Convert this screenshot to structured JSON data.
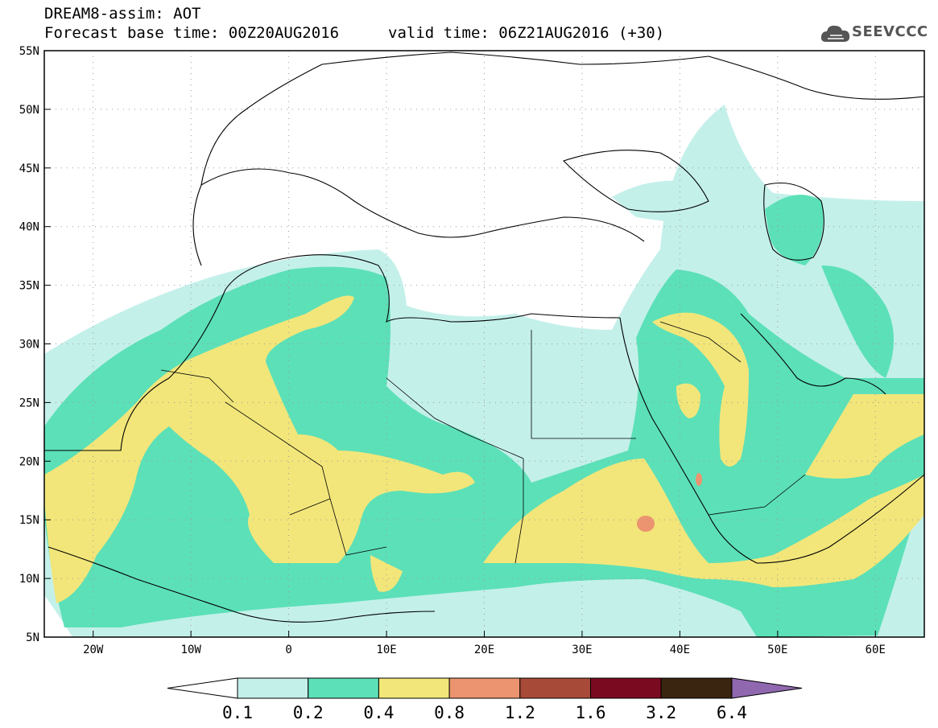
{
  "header": {
    "title": "DREAM8-assim: AOT",
    "base_time": "Forecast base time: 00Z20AUG2016",
    "valid_time": "valid time: 06Z21AUG2016 (+30)"
  },
  "logo": {
    "text": "SEEVCCC",
    "icon": "cloud-icon"
  },
  "map": {
    "lon_range": [
      -25,
      65
    ],
    "lat_range": [
      5,
      55
    ],
    "lat_ticks": [
      {
        "value": 55,
        "label": "55N"
      },
      {
        "value": 50,
        "label": "50N"
      },
      {
        "value": 45,
        "label": "45N"
      },
      {
        "value": 40,
        "label": "40N"
      },
      {
        "value": 35,
        "label": "35N"
      },
      {
        "value": 30,
        "label": "30N"
      },
      {
        "value": 25,
        "label": "25N"
      },
      {
        "value": 20,
        "label": "20N"
      },
      {
        "value": 15,
        "label": "15N"
      },
      {
        "value": 10,
        "label": "10N"
      },
      {
        "value": 5,
        "label": "5N"
      }
    ],
    "lon_ticks": [
      {
        "value": -20,
        "label": "20W"
      },
      {
        "value": -10,
        "label": "10W"
      },
      {
        "value": 0,
        "label": "0"
      },
      {
        "value": 10,
        "label": "10E"
      },
      {
        "value": 20,
        "label": "20E"
      },
      {
        "value": 30,
        "label": "30E"
      },
      {
        "value": 40,
        "label": "40E"
      },
      {
        "value": 50,
        "label": "50E"
      },
      {
        "value": 60,
        "label": "60E"
      }
    ],
    "grid": true,
    "colors": {
      "c1": "#c4f0ea",
      "c2": "#5ce0b8",
      "c3": "#f2e67a",
      "c4": "#ec9470",
      "c5": "#a84a38",
      "c6": "#7a0a20",
      "c7": "#3a2510",
      "c8": "#9068b0"
    }
  },
  "colorbar": {
    "labels": [
      "0.1",
      "0.2",
      "0.4",
      "0.8",
      "1.2",
      "1.6",
      "3.2",
      "6.4"
    ],
    "colors": [
      "#c4f0ea",
      "#5ce0b8",
      "#f2e67a",
      "#ec9470",
      "#a84a38",
      "#7a0a20",
      "#3a2510"
    ],
    "under_color": "#ffffff",
    "over_color": "#9068b0"
  }
}
